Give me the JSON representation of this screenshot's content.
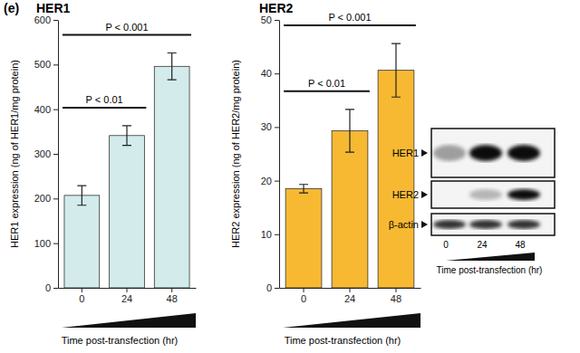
{
  "panel_label": "(e)",
  "chart_data": [
    {
      "type": "bar",
      "title": "HER1",
      "categories": [
        "0",
        "24",
        "48"
      ],
      "values": [
        207,
        341,
        496
      ],
      "errors": [
        22,
        22,
        30
      ],
      "color": "#d3ebeb",
      "ylim": [
        0,
        600
      ],
      "yticks": [
        0,
        100,
        200,
        300,
        400,
        500,
        600
      ],
      "y_label": "HER1 expression (ng of HER1/mg protein)",
      "x_label": "Time post-transfection (hr)",
      "annotations": [
        {
          "text": "P < 0.01",
          "between": [
            "0",
            "24"
          ]
        },
        {
          "text": "P < 0.001",
          "between": [
            "0",
            "48"
          ]
        }
      ]
    },
    {
      "type": "bar",
      "title": "HER2",
      "categories": [
        "0",
        "24",
        "48"
      ],
      "values": [
        18.5,
        29.3,
        40.6
      ],
      "errors": [
        0.8,
        4,
        5
      ],
      "color": "#f7b932",
      "ylim": [
        0,
        50
      ],
      "yticks": [
        0,
        10,
        20,
        30,
        40,
        50
      ],
      "y_label": "HER2 expression (ng of HER2/mg protein)",
      "x_label": "Time post-transfection (hr)",
      "annotations": [
        {
          "text": "P < 0.01",
          "between": [
            "0",
            "24"
          ]
        },
        {
          "text": "P < 0.001",
          "between": [
            "0",
            "48"
          ]
        }
      ]
    }
  ],
  "blot": {
    "rows": [
      "HER1",
      "HER2",
      "β-actin"
    ],
    "lanes": [
      "0",
      "24",
      "48"
    ],
    "x_label": "Time post-transfection (hr)"
  }
}
